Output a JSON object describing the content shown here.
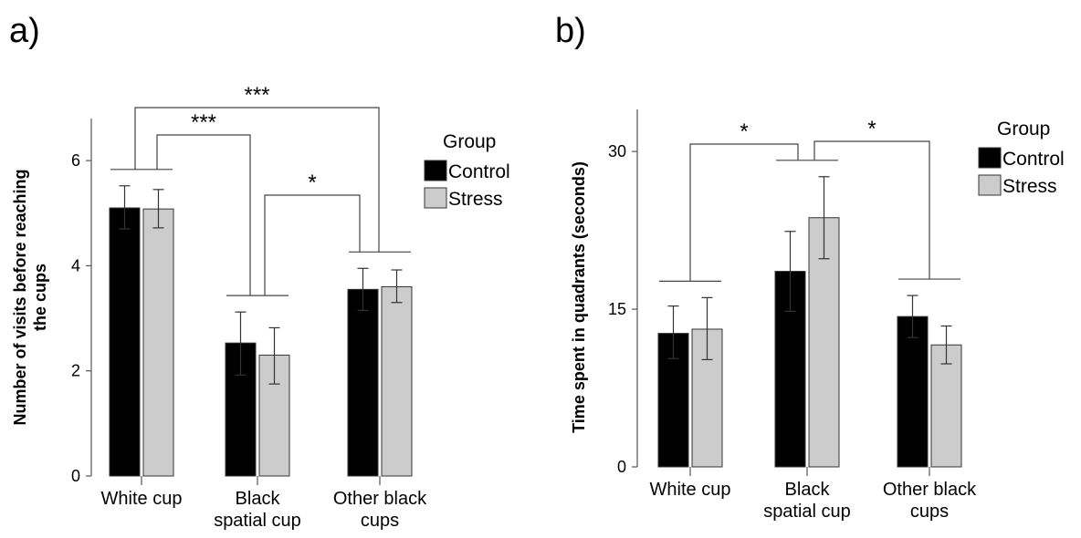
{
  "colors": {
    "Control": "#000000",
    "Stress": "#cccccc"
  },
  "chart_data": [
    {
      "panel_label": "a)",
      "type": "bar",
      "categories": [
        [
          "White cup"
        ],
        [
          "Black",
          "spatial cup"
        ],
        [
          "Other black",
          "cups"
        ]
      ],
      "ylabel": [
        "Number of visits before reaching",
        "the cups"
      ],
      "ylim": [
        0,
        6.8
      ],
      "yticks": [
        0,
        2,
        4,
        6
      ],
      "legend": {
        "title": "Group",
        "placement": "right"
      },
      "series": [
        {
          "name": "Control",
          "values": [
            5.1,
            2.53,
            3.55
          ],
          "err_low": [
            4.7,
            1.92,
            3.15
          ],
          "err_high": [
            5.52,
            3.12,
            3.95
          ]
        },
        {
          "name": "Stress",
          "values": [
            5.08,
            2.3,
            3.6
          ],
          "err_low": [
            4.72,
            1.75,
            3.3
          ],
          "err_high": [
            5.45,
            2.82,
            3.92
          ]
        }
      ],
      "significance": [
        {
          "label": "***",
          "from": 0,
          "to": 2
        },
        {
          "label": "***",
          "from": 0,
          "to": 1
        },
        {
          "label": "*",
          "from": 1,
          "to": 2
        }
      ]
    },
    {
      "panel_label": "b)",
      "type": "bar",
      "categories": [
        [
          "White cup"
        ],
        [
          "Black",
          "spatial cup"
        ],
        [
          "Other black",
          "cups"
        ]
      ],
      "ylabel": [
        "Time spent in quadrants  (seconds)"
      ],
      "ylim": [
        0,
        34
      ],
      "yticks": [
        0,
        15,
        30
      ],
      "legend": {
        "title": "Group",
        "placement": "right"
      },
      "series": [
        {
          "name": "Control",
          "values": [
            12.7,
            18.6,
            14.3
          ],
          "err_low": [
            10.3,
            14.8,
            12.3
          ],
          "err_high": [
            15.3,
            22.4,
            16.3
          ]
        },
        {
          "name": "Stress",
          "values": [
            13.1,
            23.7,
            11.6
          ],
          "err_low": [
            10.2,
            19.8,
            9.8
          ],
          "err_high": [
            16.1,
            27.6,
            13.4
          ]
        }
      ],
      "significance": [
        {
          "label": "*",
          "from": 0,
          "to": 1
        },
        {
          "label": "*",
          "from": 1,
          "to": 2
        }
      ]
    }
  ]
}
